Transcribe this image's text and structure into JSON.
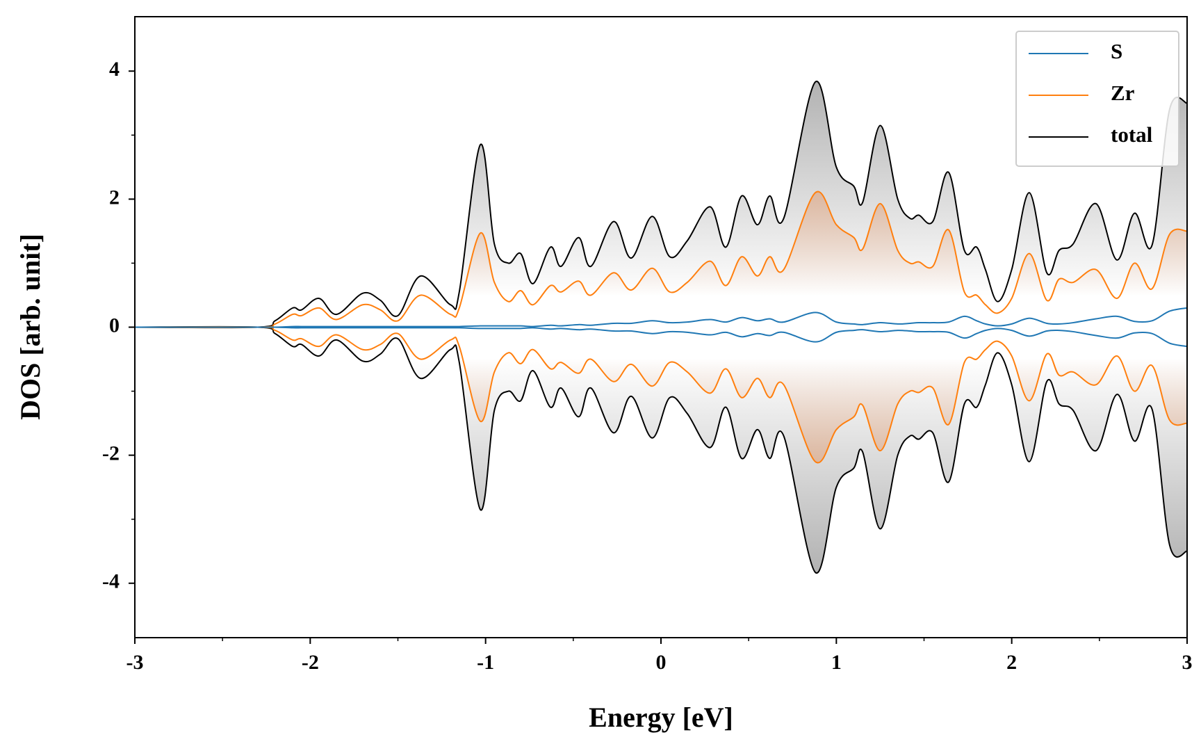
{
  "chart_data": {
    "type": "line",
    "xlabel": "Energy [eV]",
    "ylabel": "DOS [arb. unit]",
    "x": [
      -3,
      -2.3,
      -2.2,
      -2.1,
      -2.05,
      -1.95,
      -1.85,
      -1.7,
      -1.6,
      -1.5,
      -1.37,
      -1.2,
      -1.15,
      -1.03,
      -0.95,
      -0.87,
      -0.8,
      -0.73,
      -0.63,
      -0.57,
      -0.47,
      -0.4,
      -0.27,
      -0.17,
      -0.05,
      0.05,
      0.15,
      0.28,
      0.37,
      0.46,
      0.55,
      0.62,
      0.7,
      0.88,
      1.0,
      1.1,
      1.15,
      1.25,
      1.35,
      1.42,
      1.47,
      1.55,
      1.64,
      1.73,
      1.8,
      1.85,
      1.92,
      2.0,
      2.1,
      2.2,
      2.27,
      2.35,
      2.48,
      2.6,
      2.7,
      2.8,
      2.9,
      3.0
    ],
    "series": [
      {
        "name": "S",
        "color": "#1f77b4",
        "values": [
          0,
          0,
          0,
          0.01,
          0.01,
          0.01,
          0.01,
          0.01,
          0.01,
          0.01,
          0.01,
          0.01,
          0.01,
          0.02,
          0.02,
          0.02,
          0.02,
          0.01,
          0.03,
          0.02,
          0.04,
          0.03,
          0.06,
          0.06,
          0.1,
          0.07,
          0.08,
          0.12,
          0.08,
          0.15,
          0.1,
          0.13,
          0.08,
          0.23,
          0.08,
          0.05,
          0.04,
          0.07,
          0.05,
          0.06,
          0.07,
          0.07,
          0.08,
          0.17,
          0.1,
          0.05,
          0.02,
          0.05,
          0.14,
          0.06,
          0.05,
          0.07,
          0.13,
          0.17,
          0.09,
          0.1,
          0.25,
          0.3
        ],
        "values_down": [
          0,
          0,
          0,
          -0.01,
          -0.01,
          -0.01,
          -0.01,
          -0.01,
          -0.01,
          -0.01,
          -0.01,
          -0.01,
          -0.01,
          -0.02,
          -0.02,
          -0.02,
          -0.02,
          -0.01,
          -0.03,
          -0.02,
          -0.04,
          -0.03,
          -0.06,
          -0.06,
          -0.1,
          -0.07,
          -0.08,
          -0.12,
          -0.08,
          -0.15,
          -0.1,
          -0.13,
          -0.08,
          -0.23,
          -0.08,
          -0.05,
          -0.04,
          -0.07,
          -0.05,
          -0.06,
          -0.07,
          -0.07,
          -0.08,
          -0.17,
          -0.1,
          -0.05,
          -0.02,
          -0.05,
          -0.14,
          -0.06,
          -0.05,
          -0.07,
          -0.13,
          -0.17,
          -0.09,
          -0.1,
          -0.25,
          -0.3
        ]
      },
      {
        "name": "Zr",
        "color": "#ff7f0e",
        "fill": "#e07a3a",
        "values": [
          0,
          0,
          0.05,
          0.2,
          0.18,
          0.3,
          0.12,
          0.35,
          0.27,
          0.1,
          0.5,
          0.2,
          0.3,
          1.47,
          0.7,
          0.4,
          0.57,
          0.35,
          0.65,
          0.55,
          0.72,
          0.5,
          0.85,
          0.58,
          0.92,
          0.55,
          0.7,
          1.03,
          0.65,
          1.1,
          0.8,
          1.1,
          0.9,
          2.1,
          1.6,
          1.4,
          1.22,
          1.93,
          1.2,
          1.0,
          1.02,
          0.95,
          1.52,
          0.55,
          0.5,
          0.35,
          0.22,
          0.45,
          1.15,
          0.42,
          0.75,
          0.7,
          0.9,
          0.45,
          1.0,
          0.6,
          1.45,
          1.5
        ],
        "values_down": [
          0,
          0,
          -0.05,
          -0.2,
          -0.18,
          -0.3,
          -0.12,
          -0.35,
          -0.27,
          -0.1,
          -0.5,
          -0.2,
          -0.3,
          -1.47,
          -0.7,
          -0.4,
          -0.57,
          -0.35,
          -0.65,
          -0.55,
          -0.72,
          -0.5,
          -0.85,
          -0.58,
          -0.92,
          -0.55,
          -0.7,
          -1.03,
          -0.65,
          -1.1,
          -0.8,
          -1.1,
          -0.9,
          -2.1,
          -1.6,
          -1.4,
          -1.22,
          -1.93,
          -1.2,
          -1.0,
          -1.02,
          -0.95,
          -1.52,
          -0.55,
          -0.5,
          -0.35,
          -0.22,
          -0.45,
          -1.15,
          -0.42,
          -0.75,
          -0.7,
          -0.9,
          -0.45,
          -1.0,
          -0.6,
          -1.45,
          -1.5
        ]
      },
      {
        "name": "total",
        "color": "#000000",
        "fill": "#9a9a9a",
        "values": [
          0,
          0,
          0.1,
          0.3,
          0.27,
          0.45,
          0.2,
          0.53,
          0.42,
          0.18,
          0.8,
          0.35,
          0.55,
          2.85,
          1.3,
          1.0,
          1.15,
          0.68,
          1.25,
          0.95,
          1.4,
          0.95,
          1.65,
          1.08,
          1.73,
          1.1,
          1.35,
          1.88,
          1.25,
          2.05,
          1.6,
          2.05,
          1.7,
          3.83,
          2.5,
          2.2,
          1.95,
          3.15,
          2.0,
          1.7,
          1.75,
          1.65,
          2.42,
          1.2,
          1.25,
          0.9,
          0.4,
          0.9,
          2.1,
          0.85,
          1.2,
          1.3,
          1.93,
          1.05,
          1.78,
          1.28,
          3.4,
          3.5
        ],
        "values_down": [
          0,
          0,
          -0.1,
          -0.3,
          -0.27,
          -0.45,
          -0.2,
          -0.53,
          -0.42,
          -0.18,
          -0.8,
          -0.35,
          -0.55,
          -2.85,
          -1.3,
          -1.0,
          -1.15,
          -0.68,
          -1.25,
          -0.95,
          -1.4,
          -0.95,
          -1.65,
          -1.08,
          -1.73,
          -1.1,
          -1.35,
          -1.88,
          -1.25,
          -2.05,
          -1.6,
          -2.05,
          -1.7,
          -3.83,
          -2.5,
          -2.2,
          -1.95,
          -3.15,
          -2.0,
          -1.7,
          -1.75,
          -1.65,
          -2.42,
          -1.2,
          -1.25,
          -0.9,
          -0.4,
          -0.9,
          -2.1,
          -0.85,
          -1.2,
          -1.3,
          -1.93,
          -1.05,
          -1.78,
          -1.28,
          -3.4,
          -3.5
        ]
      }
    ],
    "xlim": [
      -3,
      3
    ],
    "ylim": [
      -4.85,
      4.85
    ],
    "xticks": [
      -3,
      -2,
      -1,
      0,
      1,
      2,
      3
    ],
    "xminorticks": [
      -2.5,
      -1.5,
      -0.5,
      0.5,
      1.5,
      2.5
    ],
    "yticks": [
      -4,
      -2,
      0,
      2,
      4
    ],
    "yminorticks": [
      -3,
      -1,
      1,
      3
    ],
    "legend": "upper right",
    "grid": false
  }
}
